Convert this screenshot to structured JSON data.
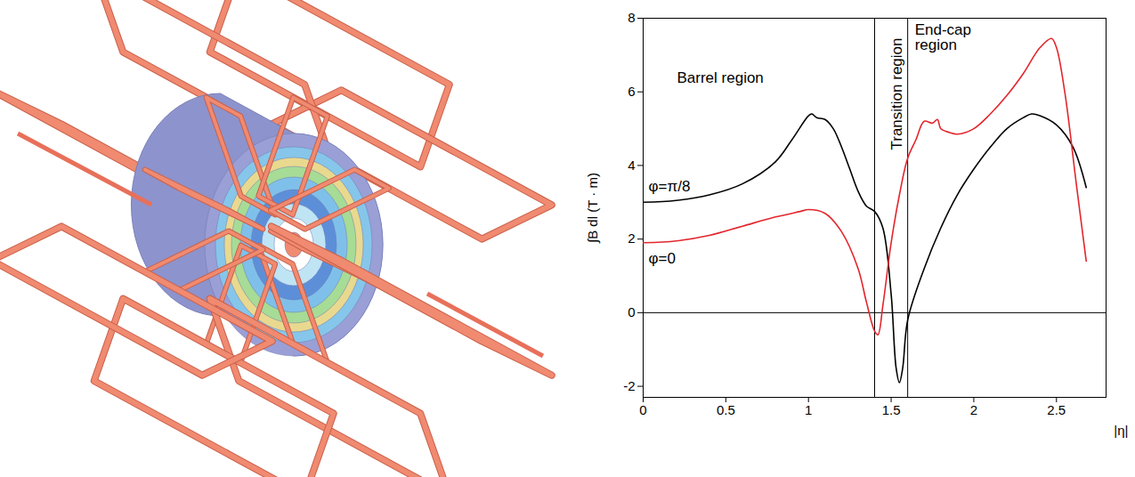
{
  "chart_data": {
    "type": "line",
    "x_label": "|η|",
    "y_label": "∫B dl (T · m)",
    "xlim": [
      0,
      2.8
    ],
    "ylim": [
      -2.3,
      8
    ],
    "xticks": [
      0,
      0.5,
      1,
      1.5,
      2,
      2.5
    ],
    "yticks": [
      -2,
      0,
      2,
      4,
      6,
      8
    ],
    "grid": false,
    "vlines": [
      1.4,
      1.6
    ],
    "hlines": [
      0
    ],
    "regions": [
      "Barrel region",
      "Transition region",
      "End-cap region"
    ],
    "series": [
      {
        "name": "φ=π/8",
        "color": "#000000",
        "x": [
          0,
          0.2,
          0.4,
          0.6,
          0.8,
          0.9,
          1.0,
          1.02,
          1.05,
          1.1,
          1.15,
          1.2,
          1.25,
          1.3,
          1.35,
          1.4,
          1.45,
          1.5,
          1.53,
          1.55,
          1.57,
          1.6,
          1.7,
          1.8,
          1.9,
          2.0,
          2.1,
          2.2,
          2.3,
          2.35,
          2.4,
          2.5,
          2.6,
          2.68
        ],
        "values": [
          3.0,
          3.05,
          3.2,
          3.5,
          4.1,
          4.7,
          5.35,
          5.4,
          5.3,
          5.25,
          5.0,
          4.5,
          3.9,
          3.3,
          2.9,
          2.75,
          2.3,
          0.5,
          -1.5,
          -1.9,
          -1.5,
          -0.2,
          1.2,
          2.3,
          3.2,
          3.9,
          4.5,
          5.0,
          5.3,
          5.4,
          5.35,
          5.1,
          4.5,
          3.4
        ]
      },
      {
        "name": "φ=0",
        "color": "#e3262d",
        "x": [
          0,
          0.2,
          0.4,
          0.6,
          0.8,
          0.95,
          1.0,
          1.1,
          1.2,
          1.3,
          1.35,
          1.4,
          1.42,
          1.45,
          1.5,
          1.55,
          1.6,
          1.65,
          1.7,
          1.75,
          1.78,
          1.8,
          1.85,
          1.9,
          2.0,
          2.1,
          2.2,
          2.3,
          2.4,
          2.47,
          2.5,
          2.55,
          2.62,
          2.68
        ],
        "values": [
          1.9,
          1.95,
          2.1,
          2.35,
          2.6,
          2.75,
          2.8,
          2.7,
          2.2,
          1.2,
          0.3,
          -0.5,
          -0.6,
          0.2,
          1.9,
          3.2,
          4.2,
          4.7,
          5.2,
          5.15,
          5.25,
          5.0,
          4.9,
          4.85,
          5.0,
          5.4,
          5.9,
          6.5,
          7.2,
          7.45,
          7.2,
          6.0,
          3.5,
          1.4
        ]
      }
    ]
  }
}
